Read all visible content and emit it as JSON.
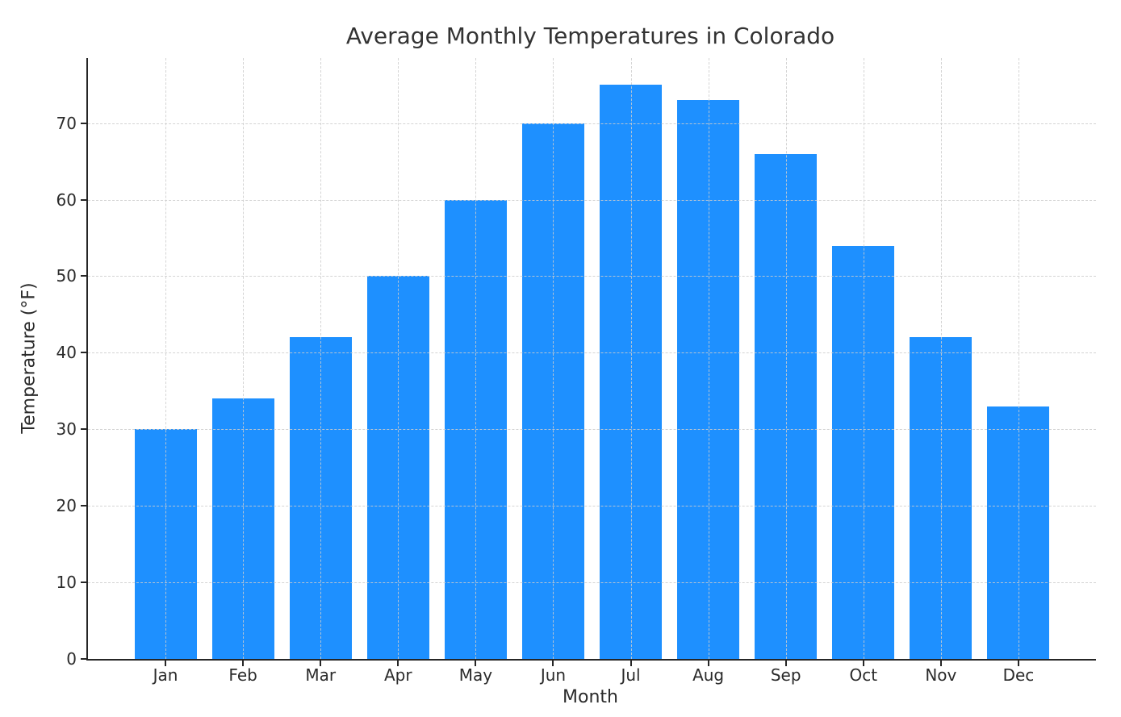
{
  "chart_data": {
    "type": "bar",
    "title": "Average Monthly Temperatures in Colorado",
    "xlabel": "Month",
    "ylabel": "Temperature (°F)",
    "categories": [
      "Jan",
      "Feb",
      "Mar",
      "Apr",
      "May",
      "Jun",
      "Jul",
      "Aug",
      "Sep",
      "Oct",
      "Nov",
      "Dec"
    ],
    "values": [
      30,
      34,
      42,
      50,
      60,
      70,
      75,
      73,
      66,
      54,
      42,
      33
    ],
    "yticks": [
      0,
      10,
      20,
      30,
      40,
      50,
      60,
      70
    ],
    "ylim": [
      0,
      78.5
    ],
    "bar_color": "#1E90FF",
    "grid": "dashed",
    "grid_color": "#cccccc",
    "legend": "none"
  }
}
